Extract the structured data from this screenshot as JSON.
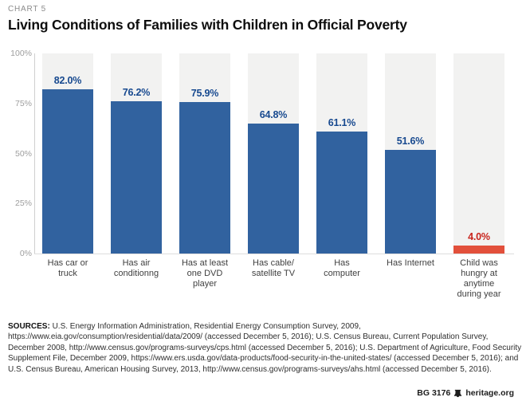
{
  "header": {
    "kicker": "CHART 5",
    "title": "Living Conditions of Families with Children in Official Poverty"
  },
  "chart_data": {
    "type": "bar",
    "categories": [
      "Has car or\ntruck",
      "Has air\nconditionng",
      "Has at least\none DVD\nplayer",
      "Has cable/\nsatellite TV",
      "Has\ncomputer",
      "Has Internet",
      "Child was\nhungry at\nanytime\nduring year"
    ],
    "values": [
      82.0,
      76.2,
      75.9,
      64.8,
      61.1,
      51.6,
      4.0
    ],
    "value_labels": [
      "82.0%",
      "76.2%",
      "75.9%",
      "64.8%",
      "61.1%",
      "51.6%",
      "4.0%"
    ],
    "highlight_index": 6,
    "yticks": [
      "100%",
      "75%",
      "50%",
      "25%",
      "0%"
    ],
    "ylim": [
      0,
      100
    ],
    "grid": "off",
    "legend": "none",
    "xlabel": "",
    "ylabel": "",
    "colors": {
      "bar": "#31629f",
      "bar_highlight": "#e2503b",
      "value_label": "#17498f",
      "value_label_highlight": "#c8231b",
      "track": "#f2f2f1"
    }
  },
  "sources": {
    "label": "SOURCES:",
    "text": "U.S. Energy Information Administration, Residential Energy Consumption Survey, 2009, https://www.eia.gov/consumption/residential/data/2009/ (accessed December 5, 2016); U.S. Census Bureau, Current Population Survey, December 2008, http://www.census.gov/programs-surveys/cps.html (accessed December 5, 2016); U.S. Department of Agriculture, Food Security Supplement File, December 2009, https://www.ers.usda.gov/data-products/food-security-in-the-united-states/ (accessed December 5, 2016); and U.S. Census Bureau, American Housing Survey, 2013, http://www.census.gov/programs-surveys/ahs.html (accessed December 5, 2016)."
  },
  "footer": {
    "report_id": "BG 3176",
    "site": "heritage.org"
  }
}
